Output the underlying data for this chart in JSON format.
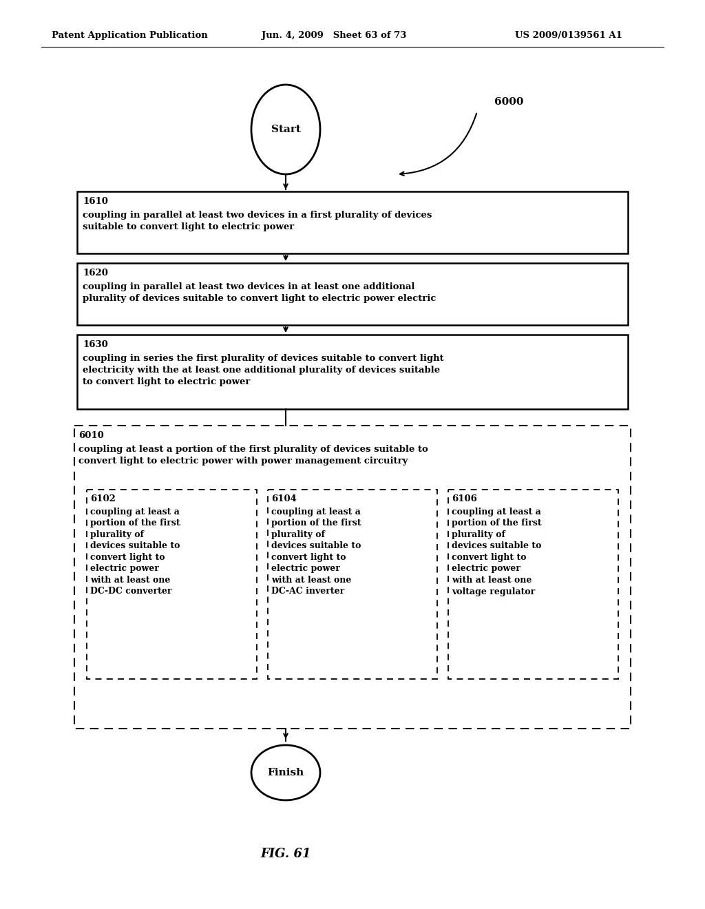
{
  "header_left": "Patent Application Publication",
  "header_mid": "Jun. 4, 2009   Sheet 63 of 73",
  "header_right": "US 2009/0139561 A1",
  "fig_label": "FIG. 61",
  "ref_number": "6000",
  "start_label": "Start",
  "finish_label": "Finish",
  "box1_id": "1610",
  "box1_text": "coupling in parallel at least two devices in a first plurality of devices\nsuitable to convert light to electric power",
  "box2_id": "1620",
  "box2_text": "coupling in parallel at least two devices in at least one additional\nplurality of devices suitable to convert light to electric power electric",
  "box3_id": "1630",
  "box3_text": "coupling in series the first plurality of devices suitable to convert light\nelectricity with the at least one additional plurality of devices suitable\nto convert light to electric power",
  "outer_id": "6010",
  "outer_text": "coupling at least a portion of the first plurality of devices suitable to\nconvert light to electric power with power management circuitry",
  "sub1_id": "6102",
  "sub1_text": "coupling at least a\nportion of the first\nplurality of\ndevices suitable to\nconvert light to\nelectric power\nwith at least one\nDC-DC converter",
  "sub2_id": "6104",
  "sub2_text": "coupling at least a\nportion of the first\nplurality of\ndevices suitable to\nconvert light to\nelectric power\nwith at least one\nDC-AC inverter",
  "sub3_id": "6106",
  "sub3_text": "coupling at least a\nportion of the first\nplurality of\ndevices suitable to\nconvert light to\nelectric power\nwith at least one\nvoltage regulator",
  "bg_color": "#ffffff",
  "line_color": "#000000",
  "text_color": "#000000",
  "font_size_header": 9.5,
  "font_size_id": 9.5,
  "font_size_body": 9.5,
  "font_size_terminal": 11,
  "font_size_figcaption": 13
}
